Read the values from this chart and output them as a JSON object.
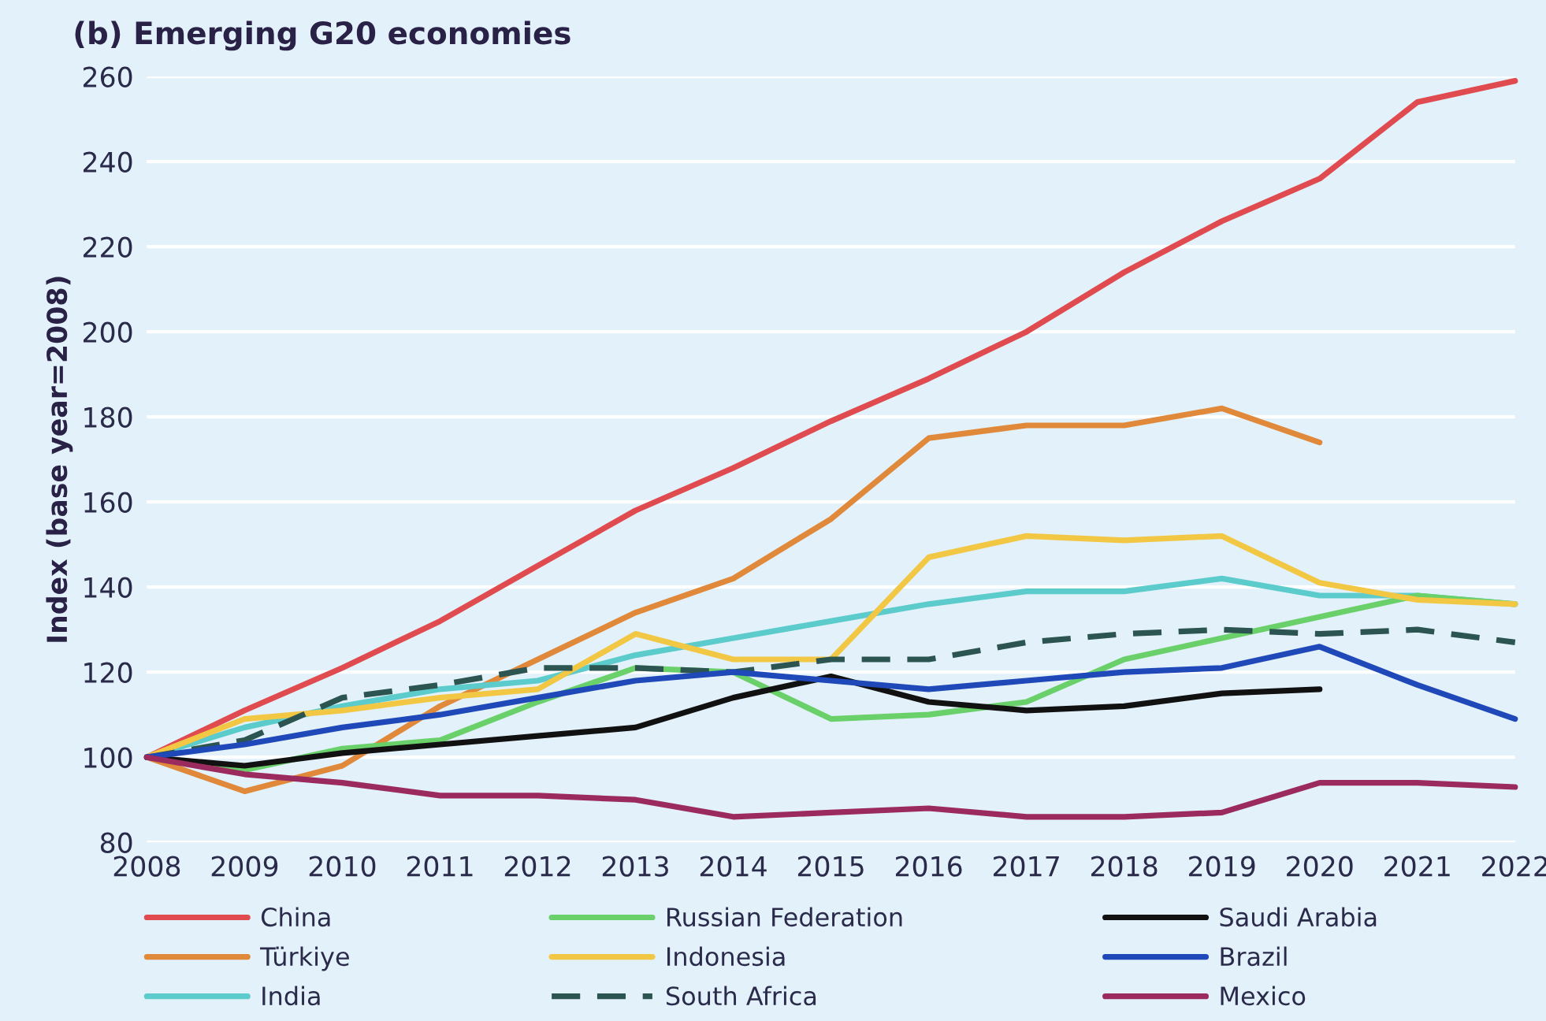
{
  "chart_data": {
    "type": "line",
    "title": "(b) Emerging G20 economies",
    "ylabel": "Index (base year=2008)",
    "x": [
      2008,
      2009,
      2010,
      2011,
      2012,
      2013,
      2014,
      2015,
      2016,
      2017,
      2018,
      2019,
      2020,
      2021,
      2022
    ],
    "xlim": [
      2008,
      2022
    ],
    "xticks": [
      2008,
      2009,
      2010,
      2011,
      2012,
      2013,
      2014,
      2015,
      2016,
      2017,
      2018,
      2019,
      2020,
      2021,
      2022
    ],
    "ylim": [
      80,
      260
    ],
    "yticks": [
      80,
      100,
      120,
      140,
      160,
      180,
      200,
      220,
      240,
      260
    ],
    "grid": "y",
    "legend": "bottom",
    "marker": "none",
    "series": [
      {
        "name": "China",
        "color": "#e04b4f",
        "values": [
          100,
          111,
          121,
          132,
          145,
          158,
          168,
          179,
          189,
          200,
          214,
          226,
          236,
          254,
          259
        ]
      },
      {
        "name": "Türkiye",
        "color": "#e0893a",
        "values": [
          100,
          92,
          98,
          112,
          123,
          134,
          142,
          156,
          175,
          178,
          178,
          182,
          174,
          null,
          null
        ]
      },
      {
        "name": "India",
        "color": "#5ccbcb",
        "values": [
          100,
          107,
          112,
          116,
          118,
          124,
          128,
          132,
          136,
          139,
          139,
          142,
          138,
          138,
          136
        ]
      },
      {
        "name": "Russian Federation",
        "color": "#6ad06a",
        "values": [
          100,
          97,
          102,
          104,
          113,
          121,
          120,
          109,
          110,
          113,
          123,
          128,
          133,
          138,
          136
        ]
      },
      {
        "name": "Indonesia",
        "color": "#f2c744",
        "values": [
          100,
          109,
          111,
          114,
          116,
          129,
          123,
          123,
          147,
          152,
          151,
          152,
          141,
          137,
          136
        ]
      },
      {
        "name": "South Africa",
        "color": "#2c5450",
        "line_style": "dashed",
        "values": [
          100,
          104,
          114,
          117,
          121,
          121,
          120,
          123,
          123,
          127,
          129,
          130,
          129,
          130,
          127
        ]
      },
      {
        "name": "Saudi Arabia",
        "color": "#111111",
        "values": [
          100,
          98,
          101,
          103,
          105,
          107,
          114,
          119,
          113,
          111,
          112,
          115,
          116,
          null,
          null
        ]
      },
      {
        "name": "Brazil",
        "color": "#1f48b8",
        "values": [
          100,
          103,
          107,
          110,
          114,
          118,
          120,
          118,
          116,
          118,
          120,
          121,
          126,
          117,
          109
        ]
      },
      {
        "name": "Mexico",
        "color": "#9b2a5e",
        "values": [
          100,
          96,
          94,
          91,
          91,
          90,
          86,
          87,
          88,
          86,
          86,
          87,
          94,
          94,
          93
        ]
      }
    ]
  }
}
